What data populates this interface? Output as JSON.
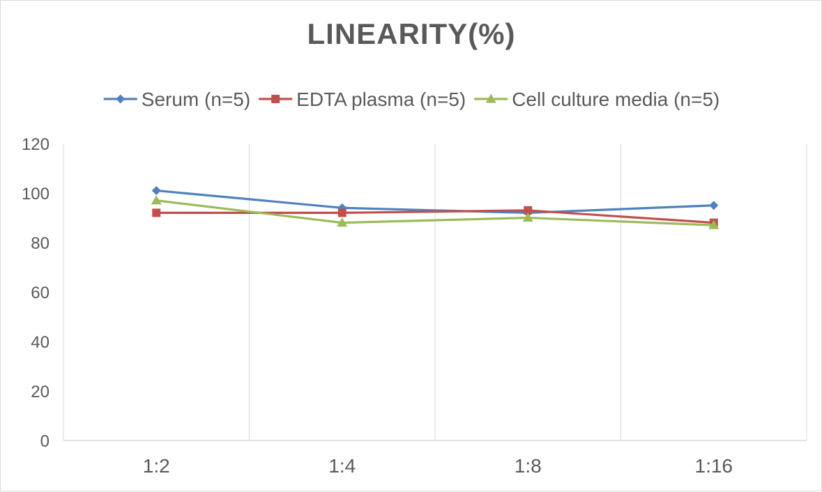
{
  "chart_data": {
    "type": "line",
    "title": "LINEARITY(%)",
    "xlabel": "",
    "ylabel": "",
    "categories": [
      "1:2",
      "1:4",
      "1:8",
      "1:16"
    ],
    "ylim": [
      0,
      120
    ],
    "yticks": [
      0,
      20,
      40,
      60,
      80,
      100,
      120
    ],
    "grid": "vertical",
    "legend_position": "top",
    "series": [
      {
        "name": "Serum (n=5)",
        "values": [
          101,
          94,
          92,
          95
        ],
        "color": "#4F81BD",
        "marker": "diamond"
      },
      {
        "name": "EDTA plasma (n=5)",
        "values": [
          92,
          92,
          93,
          88
        ],
        "color": "#C0504D",
        "marker": "square"
      },
      {
        "name": "Cell culture media (n=5)",
        "values": [
          97,
          88,
          90,
          87
        ],
        "color": "#9BBB59",
        "marker": "triangle"
      }
    ]
  }
}
